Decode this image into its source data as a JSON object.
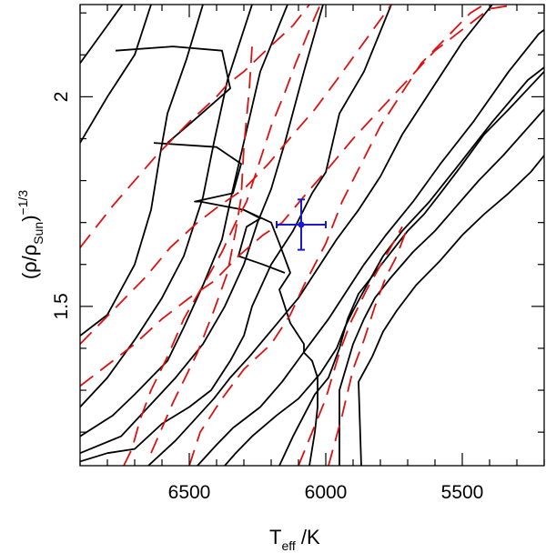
{
  "chart_data": {
    "type": "line",
    "xlabel": {
      "main": "T",
      "sub": "eff",
      "rest": " /K"
    },
    "ylabel": {
      "main": "(ρ/ρ",
      "sub": "Sun",
      "close": ")",
      "sup": "−1/3"
    },
    "xlim": [
      6900,
      5200
    ],
    "ylim": [
      1.12,
      2.22
    ],
    "x_ticks": [
      {
        "value": 6500,
        "label": "6500"
      },
      {
        "value": 6000,
        "label": "6000"
      },
      {
        "value": 5500,
        "label": "5500"
      }
    ],
    "y_ticks": [
      {
        "value": 1.5,
        "label": "1.5"
      },
      {
        "value": 2.0,
        "label": "2"
      }
    ],
    "x_minor_step": 100,
    "y_minor_step": 0.1,
    "isochrones": [
      [
        [
          6900,
          2.08
        ],
        [
          6800,
          2.17
        ],
        [
          6745,
          2.22
        ]
      ],
      [
        [
          6900,
          1.89
        ],
        [
          6800,
          2.0
        ],
        [
          6700,
          2.1
        ],
        [
          6640,
          2.22
        ]
      ],
      [
        [
          6770,
          2.11
        ],
        [
          6560,
          2.12
        ],
        [
          6380,
          2.11
        ],
        [
          6350,
          2.02
        ],
        [
          6490,
          1.94
        ],
        [
          6580,
          1.89
        ]
      ],
      [
        [
          6630,
          1.89
        ],
        [
          6400,
          1.88
        ],
        [
          6310,
          1.84
        ],
        [
          6340,
          1.77
        ],
        [
          6480,
          1.75
        ],
        [
          6460,
          1.75
        ]
      ],
      [
        [
          6460,
          1.75
        ],
        [
          6300,
          1.73
        ],
        [
          6200,
          1.7
        ],
        [
          6170,
          1.65
        ],
        [
          6130,
          1.58
        ],
        [
          6170,
          1.54
        ],
        [
          6130,
          1.46
        ],
        [
          6080,
          1.41
        ],
        [
          6080,
          1.39
        ],
        [
          6050,
          1.37
        ],
        [
          6030,
          1.33
        ],
        [
          6030,
          1.26
        ],
        [
          6040,
          1.2
        ],
        [
          6060,
          1.12
        ]
      ],
      [
        [
          6300,
          1.73
        ],
        [
          6240,
          1.71
        ],
        [
          6290,
          1.69
        ],
        [
          6320,
          1.62
        ],
        [
          6230,
          1.6
        ],
        [
          6150,
          1.58
        ]
      ],
      [
        [
          6900,
          1.43
        ],
        [
          6800,
          1.48
        ],
        [
          6700,
          1.6
        ],
        [
          6640,
          1.73
        ],
        [
          6610,
          1.85
        ],
        [
          6580,
          1.96
        ],
        [
          6510,
          2.09
        ],
        [
          6450,
          2.22
        ]
      ],
      [
        [
          6900,
          1.26
        ],
        [
          6800,
          1.33
        ],
        [
          6700,
          1.42
        ],
        [
          6600,
          1.52
        ],
        [
          6520,
          1.62
        ],
        [
          6450,
          1.76
        ],
        [
          6410,
          1.89
        ],
        [
          6360,
          2.04
        ],
        [
          6270,
          2.22
        ]
      ],
      [
        [
          6900,
          1.19
        ],
        [
          6780,
          1.24
        ],
        [
          6700,
          1.29
        ],
        [
          6580,
          1.37
        ],
        [
          6520,
          1.45
        ],
        [
          6450,
          1.55
        ],
        [
          6380,
          1.66
        ],
        [
          6340,
          1.78
        ],
        [
          6290,
          1.92
        ],
        [
          6240,
          2.06
        ],
        [
          6140,
          2.22
        ]
      ],
      [
        [
          6900,
          1.15
        ],
        [
          6750,
          1.19
        ],
        [
          6650,
          1.26
        ],
        [
          6550,
          1.33
        ],
        [
          6450,
          1.41
        ],
        [
          6370,
          1.5
        ],
        [
          6300,
          1.6
        ],
        [
          6250,
          1.7
        ],
        [
          6200,
          1.78
        ],
        [
          6150,
          1.89
        ],
        [
          6080,
          2.06
        ],
        [
          6010,
          2.22
        ]
      ],
      [
        [
          6900,
          1.13
        ],
        [
          6800,
          1.15
        ],
        [
          6700,
          1.16
        ],
        [
          6600,
          1.22
        ],
        [
          6500,
          1.26
        ],
        [
          6420,
          1.3
        ],
        [
          6350,
          1.37
        ],
        [
          6300,
          1.43
        ],
        [
          6270,
          1.5
        ],
        [
          6200,
          1.6
        ],
        [
          6120,
          1.68
        ],
        [
          6050,
          1.77
        ],
        [
          6000,
          1.82
        ],
        [
          5950,
          1.96
        ],
        [
          5860,
          2.06
        ],
        [
          5760,
          2.22
        ]
      ],
      [
        [
          6650,
          1.12
        ],
        [
          6550,
          1.18
        ],
        [
          6480,
          1.23
        ],
        [
          6410,
          1.28
        ],
        [
          6350,
          1.33
        ],
        [
          6280,
          1.38
        ],
        [
          6190,
          1.45
        ],
        [
          6100,
          1.52
        ],
        [
          6030,
          1.59
        ],
        [
          5960,
          1.66
        ],
        [
          5880,
          1.73
        ],
        [
          5800,
          1.81
        ],
        [
          5720,
          1.91
        ],
        [
          5620,
          2.01
        ],
        [
          5500,
          2.13
        ],
        [
          5390,
          2.22
        ]
      ],
      [
        [
          6470,
          1.12
        ],
        [
          6400,
          1.17
        ],
        [
          6340,
          1.21
        ],
        [
          6240,
          1.26
        ],
        [
          6160,
          1.32
        ],
        [
          6070,
          1.4
        ],
        [
          5990,
          1.47
        ],
        [
          5930,
          1.53
        ],
        [
          5860,
          1.6
        ],
        [
          5780,
          1.67
        ],
        [
          5680,
          1.75
        ],
        [
          5580,
          1.84
        ],
        [
          5460,
          1.94
        ],
        [
          5330,
          2.06
        ],
        [
          5220,
          2.15
        ],
        [
          5200,
          2.16
        ]
      ],
      [
        [
          6370,
          1.12
        ],
        [
          6330,
          1.15
        ],
        [
          6270,
          1.19
        ],
        [
          6180,
          1.24
        ],
        [
          6100,
          1.28
        ],
        [
          6020,
          1.34
        ],
        [
          5960,
          1.4
        ],
        [
          5930,
          1.45
        ],
        [
          5900,
          1.49
        ],
        [
          5850,
          1.55
        ],
        [
          5790,
          1.62
        ],
        [
          5720,
          1.68
        ],
        [
          5620,
          1.75
        ],
        [
          5510,
          1.84
        ],
        [
          5390,
          1.94
        ],
        [
          5260,
          2.04
        ],
        [
          5200,
          2.07
        ]
      ],
      [
        [
          6170,
          1.12
        ],
        [
          6120,
          1.19
        ],
        [
          6080,
          1.24
        ],
        [
          6040,
          1.29
        ],
        [
          5990,
          1.33
        ],
        [
          5950,
          1.4
        ],
        [
          5920,
          1.47
        ],
        [
          5880,
          1.53
        ],
        [
          5820,
          1.58
        ],
        [
          5760,
          1.63
        ],
        [
          5700,
          1.68
        ],
        [
          5640,
          1.72
        ],
        [
          5580,
          1.77
        ],
        [
          5510,
          1.83
        ],
        [
          5420,
          1.91
        ],
        [
          5330,
          1.97
        ],
        [
          5200,
          2.06
        ]
      ],
      [
        [
          5950,
          1.12
        ],
        [
          5950,
          1.3
        ],
        [
          5900,
          1.41
        ],
        [
          5860,
          1.47
        ],
        [
          5820,
          1.52
        ],
        [
          5760,
          1.57
        ],
        [
          5680,
          1.63
        ],
        [
          5600,
          1.68
        ],
        [
          5520,
          1.74
        ],
        [
          5440,
          1.8
        ],
        [
          5350,
          1.86
        ],
        [
          5200,
          1.97
        ]
      ],
      [
        [
          5870,
          1.12
        ],
        [
          5880,
          1.32
        ],
        [
          5830,
          1.38
        ],
        [
          5790,
          1.44
        ],
        [
          5740,
          1.49
        ],
        [
          5670,
          1.55
        ],
        [
          5580,
          1.61
        ],
        [
          5500,
          1.67
        ],
        [
          5420,
          1.72
        ],
        [
          5330,
          1.77
        ],
        [
          5250,
          1.82
        ],
        [
          5200,
          1.86
        ]
      ]
    ],
    "dashed_curves": [
      [
        [
          6900,
          1.64
        ],
        [
          6780,
          1.74
        ],
        [
          6620,
          1.86
        ],
        [
          6500,
          1.94
        ],
        [
          6400,
          2.0
        ],
        [
          6360,
          2.03
        ],
        [
          6300,
          2.06
        ],
        [
          6220,
          2.11
        ],
        [
          6120,
          2.17
        ],
        [
          6060,
          2.22
        ]
      ],
      [
        [
          6900,
          1.41
        ],
        [
          6780,
          1.49
        ],
        [
          6660,
          1.57
        ],
        [
          6570,
          1.64
        ],
        [
          6470,
          1.7
        ],
        [
          6390,
          1.74
        ],
        [
          6300,
          1.78
        ],
        [
          6210,
          1.84
        ],
        [
          6120,
          1.91
        ],
        [
          6040,
          1.97
        ],
        [
          5960,
          2.04
        ],
        [
          5860,
          2.13
        ],
        [
          5760,
          2.22
        ]
      ],
      [
        [
          6900,
          1.31
        ],
        [
          6800,
          1.36
        ],
        [
          6700,
          1.41
        ],
        [
          6600,
          1.47
        ],
        [
          6500,
          1.52
        ],
        [
          6410,
          1.56
        ],
        [
          6320,
          1.62
        ],
        [
          6230,
          1.67
        ],
        [
          6160,
          1.7
        ],
        [
          6070,
          1.77
        ],
        [
          5990,
          1.83
        ],
        [
          5900,
          1.9
        ],
        [
          5800,
          1.97
        ],
        [
          5700,
          2.04
        ],
        [
          5600,
          2.11
        ],
        [
          5500,
          2.16
        ],
        [
          5400,
          2.21
        ],
        [
          5300,
          2.22
        ]
      ],
      [
        [
          6640,
          1.15
        ],
        [
          6560,
          1.27
        ],
        [
          6470,
          1.39
        ],
        [
          6410,
          1.49
        ],
        [
          6360,
          1.58
        ],
        [
          6330,
          1.68
        ],
        [
          6310,
          1.76
        ],
        [
          6300,
          1.88
        ],
        [
          6280,
          2.02
        ],
        [
          6270,
          2.12
        ]
      ],
      [
        [
          6740,
          1.12
        ],
        [
          6710,
          1.16
        ],
        [
          6680,
          1.23
        ],
        [
          6640,
          1.3
        ],
        [
          6580,
          1.38
        ],
        [
          6520,
          1.47
        ],
        [
          6450,
          1.55
        ],
        [
          6380,
          1.63
        ],
        [
          6330,
          1.7
        ],
        [
          6290,
          1.75
        ],
        [
          6250,
          1.83
        ],
        [
          6200,
          1.93
        ],
        [
          6150,
          2.01
        ],
        [
          6110,
          2.08
        ],
        [
          6060,
          2.16
        ],
        [
          6020,
          2.22
        ]
      ],
      [
        [
          6500,
          1.12
        ],
        [
          6460,
          1.2
        ],
        [
          6380,
          1.28
        ],
        [
          6300,
          1.35
        ],
        [
          6200,
          1.41
        ],
        [
          6130,
          1.48
        ],
        [
          6080,
          1.55
        ],
        [
          6040,
          1.6
        ],
        [
          6000,
          1.65
        ],
        [
          5970,
          1.7
        ],
        [
          5940,
          1.75
        ],
        [
          5870,
          1.84
        ],
        [
          5800,
          1.93
        ],
        [
          5720,
          2.01
        ],
        [
          5650,
          2.08
        ],
        [
          5560,
          2.14
        ],
        [
          5470,
          2.2
        ],
        [
          5420,
          2.22
        ]
      ],
      [
        [
          6100,
          1.12
        ],
        [
          6050,
          1.2
        ],
        [
          6000,
          1.28
        ],
        [
          5950,
          1.39
        ],
        [
          5910,
          1.46
        ],
        [
          5850,
          1.54
        ],
        [
          5780,
          1.62
        ],
        [
          5720,
          1.69
        ]
      ],
      [
        [
          5990,
          1.12
        ],
        [
          5940,
          1.24
        ],
        [
          5900,
          1.35
        ],
        [
          5860,
          1.42
        ],
        [
          5820,
          1.5
        ],
        [
          5780,
          1.57
        ],
        [
          5740,
          1.62
        ],
        [
          5700,
          1.69
        ]
      ]
    ],
    "observation": {
      "teff": 6090,
      "y": 1.695,
      "teff_err": 90,
      "y_err": 0.06
    },
    "colors": {
      "isochrone": "#000000",
      "dashed": "#dd1111",
      "observation": "#1a1acc"
    }
  }
}
